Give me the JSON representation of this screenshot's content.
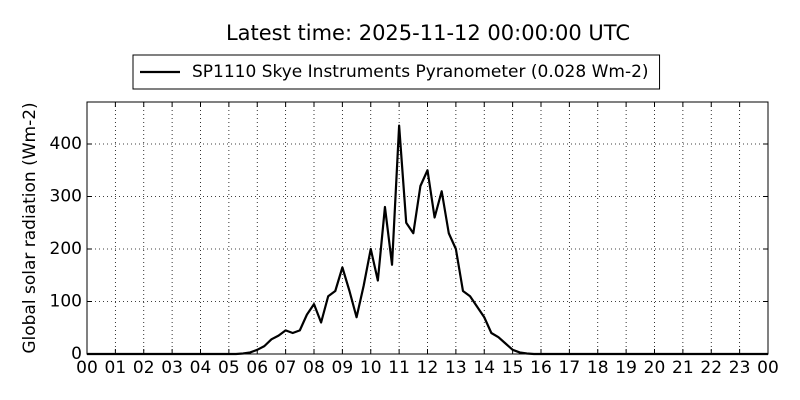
{
  "chart_data": {
    "type": "line",
    "title": "Latest time: 2025-11-12 00:00:00 UTC",
    "ylabel": "Global solar radiation (Wm-2)",
    "x": [
      0,
      0.25,
      0.5,
      0.75,
      1,
      1.25,
      1.5,
      1.75,
      2,
      2.25,
      2.5,
      2.75,
      3,
      3.25,
      3.5,
      3.75,
      4,
      4.25,
      4.5,
      4.75,
      5,
      5.25,
      5.5,
      5.75,
      6,
      6.25,
      6.5,
      6.75,
      7,
      7.25,
      7.5,
      7.75,
      8,
      8.25,
      8.5,
      8.75,
      9,
      9.25,
      9.5,
      9.75,
      10,
      10.25,
      10.5,
      10.75,
      11,
      11.25,
      11.5,
      11.75,
      12,
      12.25,
      12.5,
      12.75,
      13,
      13.25,
      13.5,
      13.75,
      14,
      14.25,
      14.5,
      14.75,
      15,
      15.25,
      15.5,
      15.75,
      16,
      16.25,
      16.5,
      16.75,
      17,
      17.25,
      17.5,
      17.75,
      18,
      18.25,
      18.5,
      18.75,
      19,
      19.25,
      19.5,
      19.75,
      20,
      20.25,
      20.5,
      20.75,
      21,
      21.25,
      21.5,
      21.75,
      22,
      22.25,
      22.5,
      22.75,
      23,
      23.25,
      23.5,
      23.75,
      24
    ],
    "series": [
      {
        "name": "SP1110 Skye Instruments Pyranometer (0.028 Wm-2)",
        "color": "#000000",
        "values": [
          0,
          0,
          0,
          0,
          0,
          0,
          0,
          0,
          0,
          0,
          0,
          0,
          0,
          0,
          0,
          0,
          0,
          0,
          0,
          0,
          0,
          0,
          1,
          3,
          8,
          15,
          28,
          35,
          45,
          40,
          45,
          75,
          95,
          60,
          110,
          120,
          165,
          120,
          70,
          130,
          200,
          140,
          280,
          170,
          435,
          250,
          230,
          320,
          350,
          260,
          310,
          230,
          200,
          120,
          110,
          90,
          70,
          40,
          32,
          20,
          8,
          3,
          1,
          0,
          0,
          0,
          0,
          0,
          0,
          0,
          0,
          0,
          0,
          0,
          0,
          0,
          0,
          0,
          0,
          0,
          0,
          0,
          0,
          0,
          0,
          0,
          0,
          0,
          0,
          0,
          0,
          0,
          0,
          0,
          0,
          0,
          0
        ]
      }
    ],
    "xlim": [
      0,
      24
    ],
    "xticks": [
      {
        "value": 0,
        "label": "00"
      },
      {
        "value": 1,
        "label": "01"
      },
      {
        "value": 2,
        "label": "02"
      },
      {
        "value": 3,
        "label": "03"
      },
      {
        "value": 4,
        "label": "04"
      },
      {
        "value": 5,
        "label": "05"
      },
      {
        "value": 6,
        "label": "06"
      },
      {
        "value": 7,
        "label": "07"
      },
      {
        "value": 8,
        "label": "08"
      },
      {
        "value": 9,
        "label": "09"
      },
      {
        "value": 10,
        "label": "10"
      },
      {
        "value": 11,
        "label": "11"
      },
      {
        "value": 12,
        "label": "12"
      },
      {
        "value": 13,
        "label": "13"
      },
      {
        "value": 14,
        "label": "14"
      },
      {
        "value": 15,
        "label": "15"
      },
      {
        "value": 16,
        "label": "16"
      },
      {
        "value": 17,
        "label": "17"
      },
      {
        "value": 18,
        "label": "18"
      },
      {
        "value": 19,
        "label": "19"
      },
      {
        "value": 20,
        "label": "20"
      },
      {
        "value": 21,
        "label": "21"
      },
      {
        "value": 22,
        "label": "22"
      },
      {
        "value": 23,
        "label": "23"
      },
      {
        "value": 24,
        "label": "00"
      }
    ],
    "ylim": [
      0,
      480
    ],
    "yticks": [
      0,
      100,
      200,
      300,
      400
    ],
    "grid": true
  }
}
